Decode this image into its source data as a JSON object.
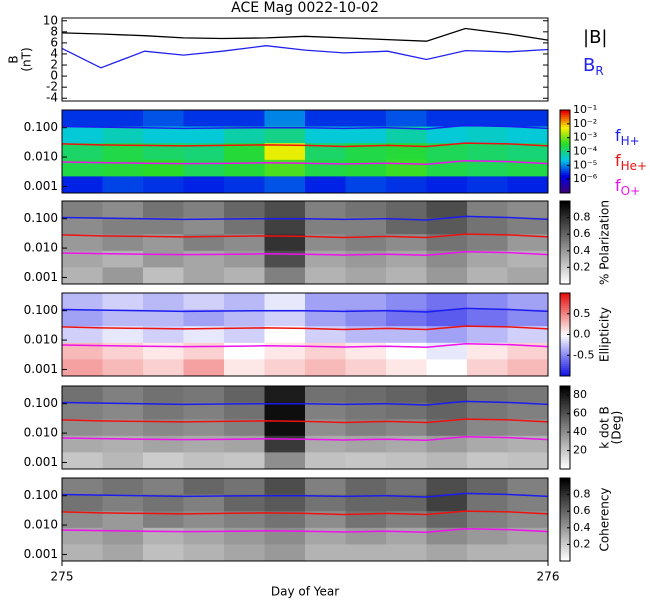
{
  "chart_data": {
    "type": "stacked-panels",
    "title": "ACE Mag 0022-10-02",
    "xlabel": "Day of Year",
    "xlim": [
      275,
      276
    ],
    "xticks": [
      275,
      276
    ],
    "x": [
      275,
      275.08,
      275.17,
      275.25,
      275.33,
      275.42,
      275.5,
      275.58,
      275.67,
      275.75,
      275.83,
      275.92,
      276
    ],
    "field": {
      "type": "line",
      "ylabel": [
        "B",
        "(nT)"
      ],
      "ylim": [
        -4.5,
        10.5
      ],
      "yticks": [
        -4,
        -2,
        0,
        2,
        4,
        6,
        8,
        10
      ],
      "series": [
        {
          "name": "|B|",
          "color": "#000000",
          "values": [
            7.8,
            7.6,
            7.3,
            6.9,
            6.8,
            6.9,
            7.2,
            6.9,
            6.6,
            6.3,
            8.6,
            7.6,
            6.5
          ]
        },
        {
          "name": "B",
          "subscript": "R",
          "color": "#2222ee",
          "values": [
            5.0,
            1.5,
            4.5,
            3.8,
            4.5,
            5.5,
            4.7,
            4.2,
            4.5,
            3.0,
            4.6,
            4.4,
            4.8
          ]
        }
      ]
    },
    "frequency": {
      "log_scale": true,
      "ylim": [
        0.0006,
        0.4
      ],
      "yticks": [
        0.001,
        {
          "value": 0.01,
          "label": "0.010"
        },
        {
          "value": 0.1,
          "label": "0.100"
        }
      ],
      "series": [
        {
          "name": "f",
          "subscript": "H+",
          "color": "#1c1cf0",
          "values": [
            0.11,
            0.105,
            0.1,
            0.095,
            0.098,
            0.1,
            0.1,
            0.095,
            0.1,
            0.09,
            0.12,
            0.11,
            0.095
          ]
        },
        {
          "name": "f",
          "subscript": "He+",
          "color": "#ee1111",
          "values": [
            0.028,
            0.026,
            0.025,
            0.024,
            0.025,
            0.026,
            0.025,
            0.023,
            0.025,
            0.023,
            0.03,
            0.028,
            0.024
          ]
        },
        {
          "name": "f",
          "subscript": "O+",
          "color": "#ee11ee",
          "values": [
            0.0068,
            0.0065,
            0.0062,
            0.006,
            0.0061,
            0.0064,
            0.0062,
            0.0058,
            0.0062,
            0.0057,
            0.0075,
            0.007,
            0.006
          ]
        }
      ]
    },
    "panels": [
      {
        "type": "heatmap",
        "colormap": "rainbow",
        "zlim": [
          -7,
          -1
        ],
        "zticks": [
          {
            "value": -1,
            "label": "10⁻¹"
          },
          {
            "value": -2,
            "label": "10⁻²"
          },
          {
            "value": -3,
            "label": "10⁻³"
          },
          {
            "value": -4,
            "label": "10⁻⁴"
          },
          {
            "value": -5,
            "label": "10⁻⁵"
          },
          {
            "value": -6,
            "label": "10⁻⁶"
          }
        ],
        "z": [
          [
            -5.5,
            -5.5,
            -5.3,
            -5.5,
            -5.5,
            -5.0,
            -5.5,
            -5.5,
            -5.3,
            -5.5,
            -5.5,
            -5.5
          ],
          [
            -4.5,
            -4.3,
            -4.5,
            -4.5,
            -4.2,
            -4.0,
            -4.5,
            -4.5,
            -4.2,
            -4.5,
            -4.4,
            -4.5
          ],
          [
            -3.8,
            -3.6,
            -3.8,
            -3.9,
            -3.5,
            -2.3,
            -3.8,
            -3.6,
            -3.5,
            -3.7,
            -3.8,
            -3.9
          ],
          [
            -3.6,
            -3.5,
            -3.4,
            -3.7,
            -3.5,
            -3.2,
            -3.6,
            -3.5,
            -3.3,
            -3.6,
            -3.7,
            -3.6
          ],
          [
            -5.6,
            -5.4,
            -5.5,
            -5.6,
            -5.5,
            -5.3,
            -5.6,
            -5.4,
            -5.5,
            -5.6,
            -5.5,
            -5.6
          ]
        ]
      },
      {
        "type": "heatmap",
        "colormap": "gray",
        "zlim": [
          0,
          1
        ],
        "zlabel": [
          "% Polarization"
        ],
        "zticks": [
          0.2,
          0.4,
          0.6,
          0.8
        ],
        "z": [
          [
            0.5,
            0.45,
            0.55,
            0.5,
            0.6,
            0.7,
            0.5,
            0.55,
            0.6,
            0.7,
            0.5,
            0.45
          ],
          [
            0.45,
            0.5,
            0.5,
            0.45,
            0.55,
            0.75,
            0.5,
            0.5,
            0.6,
            0.65,
            0.55,
            0.5
          ],
          [
            0.4,
            0.45,
            0.4,
            0.5,
            0.45,
            0.8,
            0.45,
            0.5,
            0.45,
            0.55,
            0.5,
            0.4
          ],
          [
            0.35,
            0.3,
            0.4,
            0.35,
            0.4,
            0.7,
            0.35,
            0.4,
            0.35,
            0.45,
            0.35,
            0.3
          ],
          [
            0.3,
            0.4,
            0.25,
            0.35,
            0.3,
            0.5,
            0.3,
            0.35,
            0.3,
            0.4,
            0.3,
            0.35
          ]
        ]
      },
      {
        "type": "heatmap",
        "colormap": "bwr",
        "zlim": [
          -1,
          1
        ],
        "zlabel": [
          "Ellipticity"
        ],
        "zticks": [
          -0.5,
          {
            "value": 0,
            "label": "0.0"
          },
          0.5
        ],
        "z": [
          [
            -0.3,
            -0.2,
            -0.3,
            -0.2,
            -0.3,
            -0.1,
            -0.4,
            -0.4,
            -0.5,
            -0.6,
            -0.5,
            -0.4
          ],
          [
            -0.4,
            -0.3,
            -0.3,
            -0.4,
            -0.3,
            -0.2,
            -0.4,
            -0.5,
            -0.6,
            -0.7,
            -0.6,
            -0.5
          ],
          [
            -0.2,
            -0.1,
            -0.2,
            -0.1,
            -0.2,
            0.0,
            -0.2,
            -0.3,
            -0.3,
            -0.4,
            -0.3,
            -0.2
          ],
          [
            0.3,
            0.2,
            0.1,
            0.2,
            0.0,
            0.1,
            0.2,
            0.1,
            0.0,
            -0.1,
            0.1,
            0.2
          ],
          [
            0.4,
            0.3,
            0.2,
            0.4,
            0.1,
            0.2,
            0.3,
            0.2,
            0.1,
            0.0,
            0.2,
            0.3
          ]
        ]
      },
      {
        "type": "heatmap",
        "colormap": "gray",
        "zlim": [
          0,
          90
        ],
        "zlabel": [
          "k dot B",
          "(Deg)"
        ],
        "zticks": [
          20,
          40,
          60,
          80
        ],
        "z": [
          [
            50,
            45,
            50,
            48,
            55,
            80,
            50,
            52,
            55,
            60,
            50,
            48
          ],
          [
            45,
            42,
            48,
            45,
            50,
            85,
            45,
            48,
            50,
            55,
            48,
            45
          ],
          [
            40,
            38,
            42,
            40,
            45,
            85,
            40,
            45,
            42,
            50,
            42,
            40
          ],
          [
            30,
            28,
            32,
            30,
            32,
            70,
            30,
            32,
            30,
            35,
            30,
            28
          ],
          [
            20,
            25,
            18,
            22,
            20,
            40,
            22,
            20,
            22,
            25,
            20,
            22
          ]
        ]
      },
      {
        "type": "heatmap",
        "colormap": "gray",
        "zlim": [
          0,
          1
        ],
        "zlabel": [
          "Coherency"
        ],
        "zticks": [
          0.2,
          0.4,
          0.6,
          0.8
        ],
        "z": [
          [
            0.5,
            0.55,
            0.5,
            0.6,
            0.55,
            0.7,
            0.5,
            0.6,
            0.55,
            0.7,
            0.6,
            0.5
          ],
          [
            0.55,
            0.5,
            0.55,
            0.5,
            0.6,
            0.65,
            0.55,
            0.6,
            0.6,
            0.75,
            0.55,
            0.5
          ],
          [
            0.45,
            0.4,
            0.5,
            0.45,
            0.5,
            0.55,
            0.45,
            0.55,
            0.5,
            0.6,
            0.5,
            0.45
          ],
          [
            0.35,
            0.4,
            0.3,
            0.35,
            0.4,
            0.45,
            0.35,
            0.4,
            0.35,
            0.45,
            0.4,
            0.35
          ],
          [
            0.3,
            0.35,
            0.25,
            0.3,
            0.35,
            0.4,
            0.3,
            0.3,
            0.3,
            0.35,
            0.3,
            0.3
          ]
        ]
      }
    ]
  }
}
